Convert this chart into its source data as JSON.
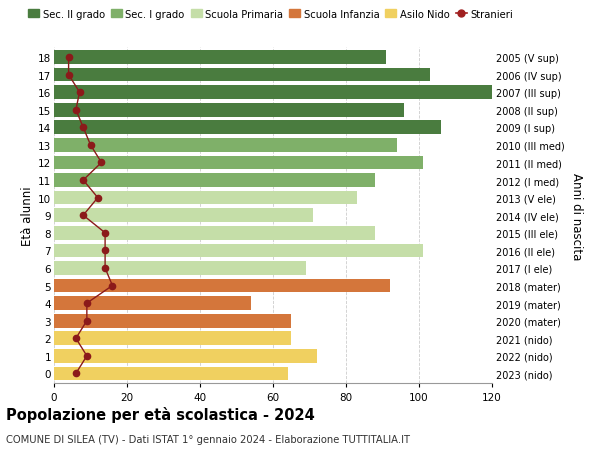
{
  "ages": [
    18,
    17,
    16,
    15,
    14,
    13,
    12,
    11,
    10,
    9,
    8,
    7,
    6,
    5,
    4,
    3,
    2,
    1,
    0
  ],
  "bar_values": [
    91,
    103,
    120,
    96,
    106,
    94,
    101,
    88,
    83,
    71,
    88,
    101,
    69,
    92,
    54,
    65,
    65,
    72,
    64
  ],
  "stranieri_values": [
    4,
    4,
    7,
    6,
    8,
    10,
    13,
    8,
    12,
    8,
    14,
    14,
    14,
    16,
    9,
    9,
    6,
    9,
    6
  ],
  "right_labels": [
    "2005 (V sup)",
    "2006 (IV sup)",
    "2007 (III sup)",
    "2008 (II sup)",
    "2009 (I sup)",
    "2010 (III med)",
    "2011 (II med)",
    "2012 (I med)",
    "2013 (V ele)",
    "2014 (IV ele)",
    "2015 (III ele)",
    "2016 (II ele)",
    "2017 (I ele)",
    "2018 (mater)",
    "2019 (mater)",
    "2020 (mater)",
    "2021 (nido)",
    "2022 (nido)",
    "2023 (nido)"
  ],
  "bar_colors": [
    "#4a7c3f",
    "#4a7c3f",
    "#4a7c3f",
    "#4a7c3f",
    "#4a7c3f",
    "#7fb069",
    "#7fb069",
    "#7fb069",
    "#c5dea8",
    "#c5dea8",
    "#c5dea8",
    "#c5dea8",
    "#c5dea8",
    "#d4763b",
    "#d4763b",
    "#d4763b",
    "#f0d060",
    "#f0d060",
    "#f0d060"
  ],
  "legend_labels": [
    "Sec. II grado",
    "Sec. I grado",
    "Scuola Primaria",
    "Scuola Infanzia",
    "Asilo Nido",
    "Stranieri"
  ],
  "legend_colors": [
    "#4a7c3f",
    "#7fb069",
    "#c5dea8",
    "#d4763b",
    "#f0d060",
    "#a02020"
  ],
  "ylabel": "Età alunni",
  "right_ylabel": "Anni di nascita",
  "title": "Popolazione per età scolastica - 2024",
  "subtitle": "COMUNE DI SILEA (TV) - Dati ISTAT 1° gennaio 2024 - Elaborazione TUTTITALIA.IT",
  "xlim": [
    0,
    120
  ],
  "xticks": [
    0,
    20,
    40,
    60,
    80,
    100,
    120
  ],
  "background_color": "#ffffff",
  "grid_color": "#cccccc",
  "stranieri_color": "#8b1a1a",
  "bar_height": 0.78
}
